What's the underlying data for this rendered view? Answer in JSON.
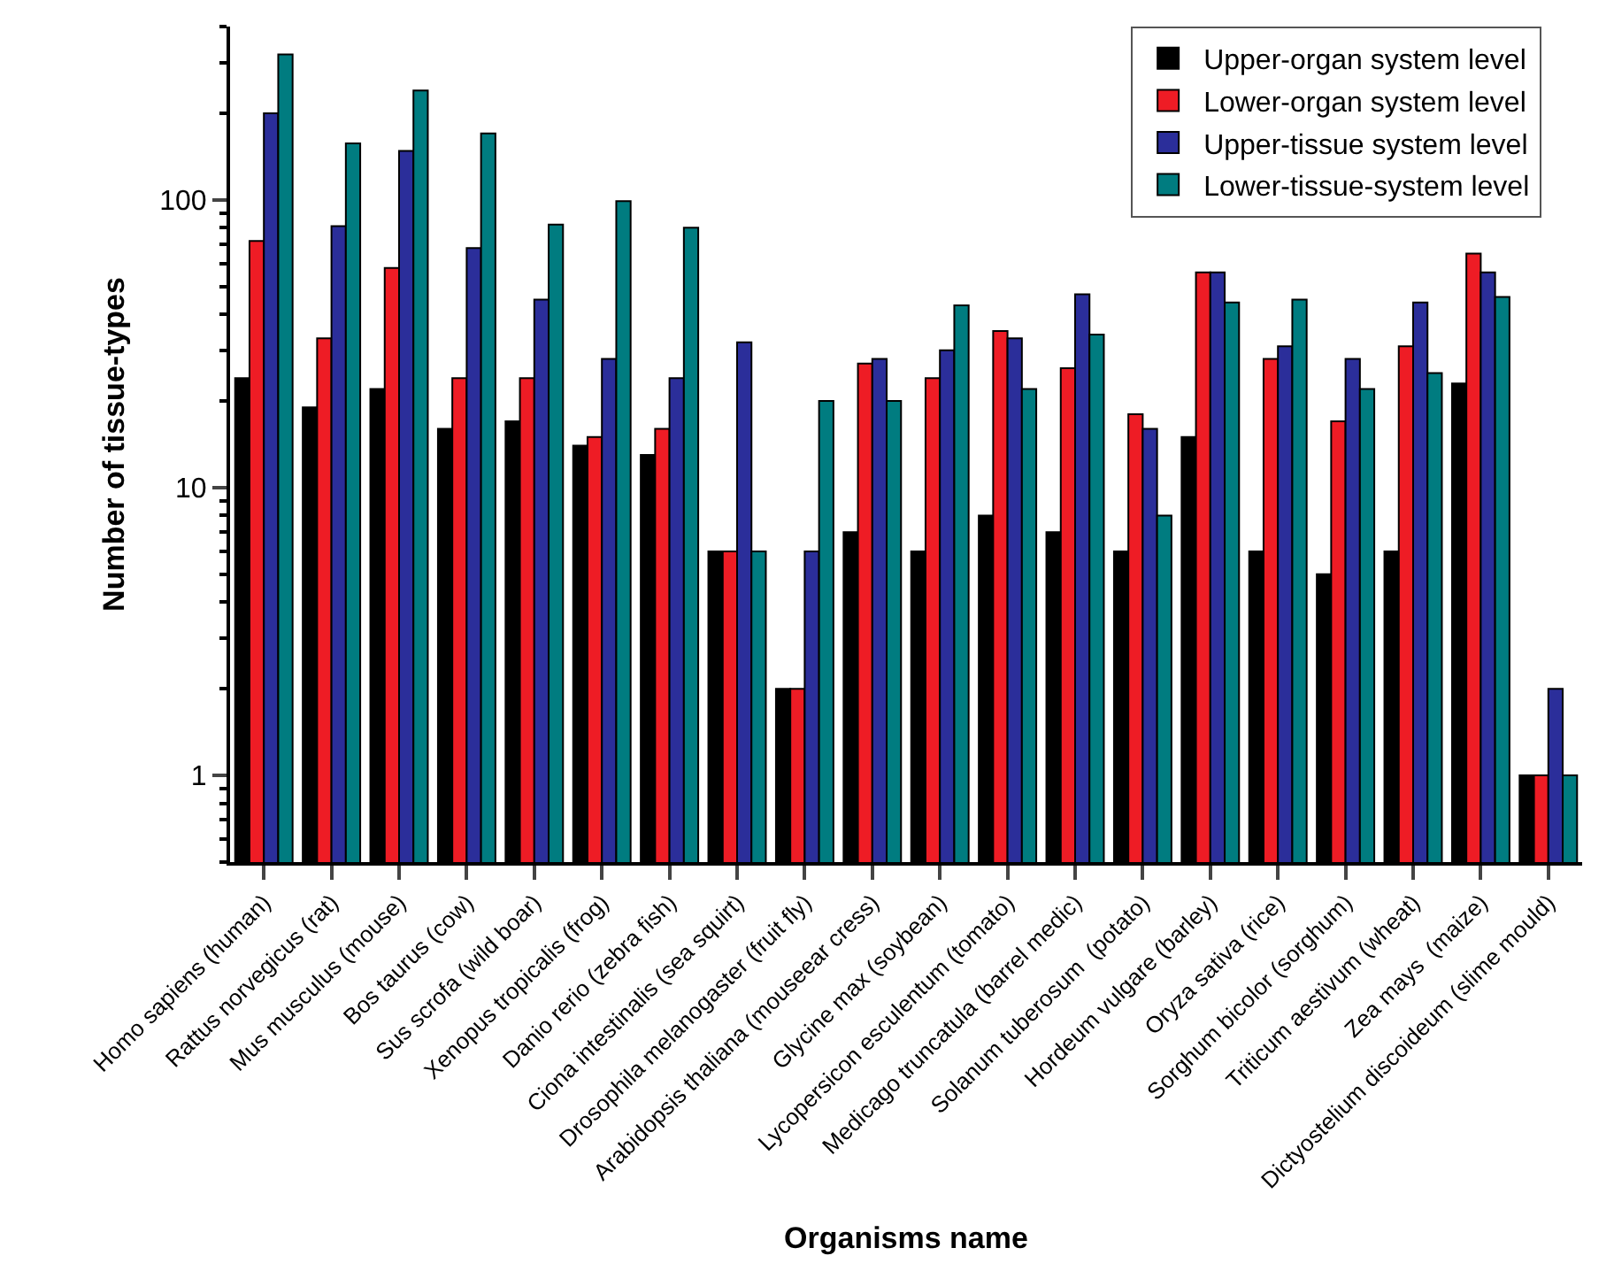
{
  "chart_data": {
    "type": "bar",
    "xlabel": "Organisms name",
    "ylabel": "Number of tissue-types",
    "categories": [
      "Homo sapiens (human)",
      "Rattus norvegicus (rat)",
      "Mus musculus (mouse)",
      "Bos taurus (cow)",
      "Sus scrofa (wild boar)",
      "Xenopus tropicalis (frog)",
      "Danio rerio (zebra fish)",
      "Ciona intestinalis (sea squirt)",
      "Drosophila melanogaster (fruit fly)",
      "Arabidopsis thaliana (mouseear cress)",
      "Glycine max (soybean)",
      "Lycopersicon esculentum (tomato)",
      "Medicago truncatula (barrel medic)",
      "Solanum tuberosum  (potato)",
      "Hordeum vulgare (barley)",
      "Oryza sativa (rice)",
      "Sorghum bicolor (sorghum)",
      "Triticum aestivum (wheat)",
      "Zea mays  (maize)",
      "Dictyostelium discoideum (slime mould)"
    ],
    "series": [
      {
        "name": "Upper-organ system level",
        "color": "#000000",
        "values": [
          24,
          19,
          22,
          16,
          17,
          14,
          13,
          6,
          2,
          7,
          6,
          8,
          7,
          6,
          15,
          6,
          5,
          6,
          23,
          1
        ]
      },
      {
        "name": "Lower-organ system level",
        "color": "#ee1c25",
        "values": [
          72,
          33,
          58,
          24,
          24,
          15,
          16,
          6,
          2,
          27,
          24,
          35,
          26,
          18,
          56,
          28,
          17,
          31,
          65,
          1
        ]
      },
      {
        "name": "Upper-tissue system level",
        "color": "#2b2e9a",
        "values": [
          200,
          81,
          148,
          68,
          45,
          28,
          24,
          32,
          6,
          28,
          30,
          33,
          47,
          16,
          56,
          31,
          28,
          44,
          56,
          2
        ]
      },
      {
        "name": "Lower-tissue-system level",
        "color": "#007c80",
        "values": [
          320,
          157,
          240,
          170,
          82,
          99,
          80,
          6,
          20,
          20,
          43,
          22,
          34,
          8,
          44,
          45,
          22,
          25,
          46,
          1
        ]
      }
    ],
    "log": true,
    "ylim": [
      0.5,
      400
    ],
    "yticks": [
      {
        "value": 0.5,
        "label": null
      },
      {
        "value": 0.6,
        "label": null
      },
      {
        "value": 0.7,
        "label": null
      },
      {
        "value": 0.8,
        "label": null
      },
      {
        "value": 0.9,
        "label": null
      },
      1,
      {
        "value": 2,
        "label": null
      },
      {
        "value": 3,
        "label": null
      },
      {
        "value": 4,
        "label": null
      },
      {
        "value": 5,
        "label": null
      },
      {
        "value": 6,
        "label": null
      },
      {
        "value": 7,
        "label": null
      },
      {
        "value": 8,
        "label": null
      },
      {
        "value": 9,
        "label": null
      },
      10,
      {
        "value": 20,
        "label": null
      },
      {
        "value": 30,
        "label": null
      },
      {
        "value": 40,
        "label": null
      },
      {
        "value": 50,
        "label": null
      },
      {
        "value": 60,
        "label": null
      },
      {
        "value": 70,
        "label": null
      },
      {
        "value": 80,
        "label": null
      },
      {
        "value": 90,
        "label": null
      },
      100,
      {
        "value": 200,
        "label": null
      },
      {
        "value": 300,
        "label": null
      },
      {
        "value": 400,
        "label": null
      }
    ],
    "legend": "top right"
  }
}
